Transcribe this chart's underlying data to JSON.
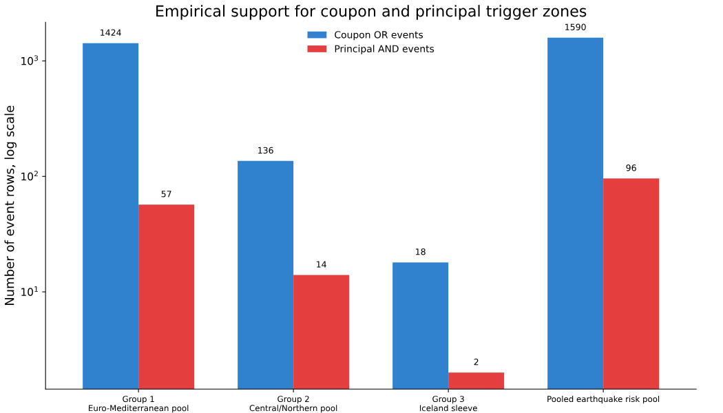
{
  "chart_data": {
    "type": "bar",
    "title": "Empirical support for coupon and principal trigger zones",
    "ylabel": "Number of event rows, log scale",
    "categories": [
      "Group 1\nEuro-Mediterranean pool",
      "Group 2\nCentral/Northern pool",
      "Group 3\nIceland sleeve",
      "Pooled earthquake risk pool"
    ],
    "series": [
      {
        "name": "Coupon OR events",
        "color": "#3182ce",
        "values": [
          1424,
          136,
          18,
          1590
        ]
      },
      {
        "name": "Principal AND events",
        "color": "#e53e3e",
        "values": [
          57,
          14,
          2,
          96
        ]
      }
    ],
    "log": "y",
    "ylim": [
      1.44,
      2160
    ],
    "yticks": [
      {
        "value": 10,
        "label": "10$^{1}$"
      },
      {
        "value": 100,
        "label": "10$^{2}$"
      },
      {
        "value": 1000,
        "label": "10$^{3}$"
      }
    ],
    "data_labels": true,
    "legend": "top",
    "grid": false
  }
}
